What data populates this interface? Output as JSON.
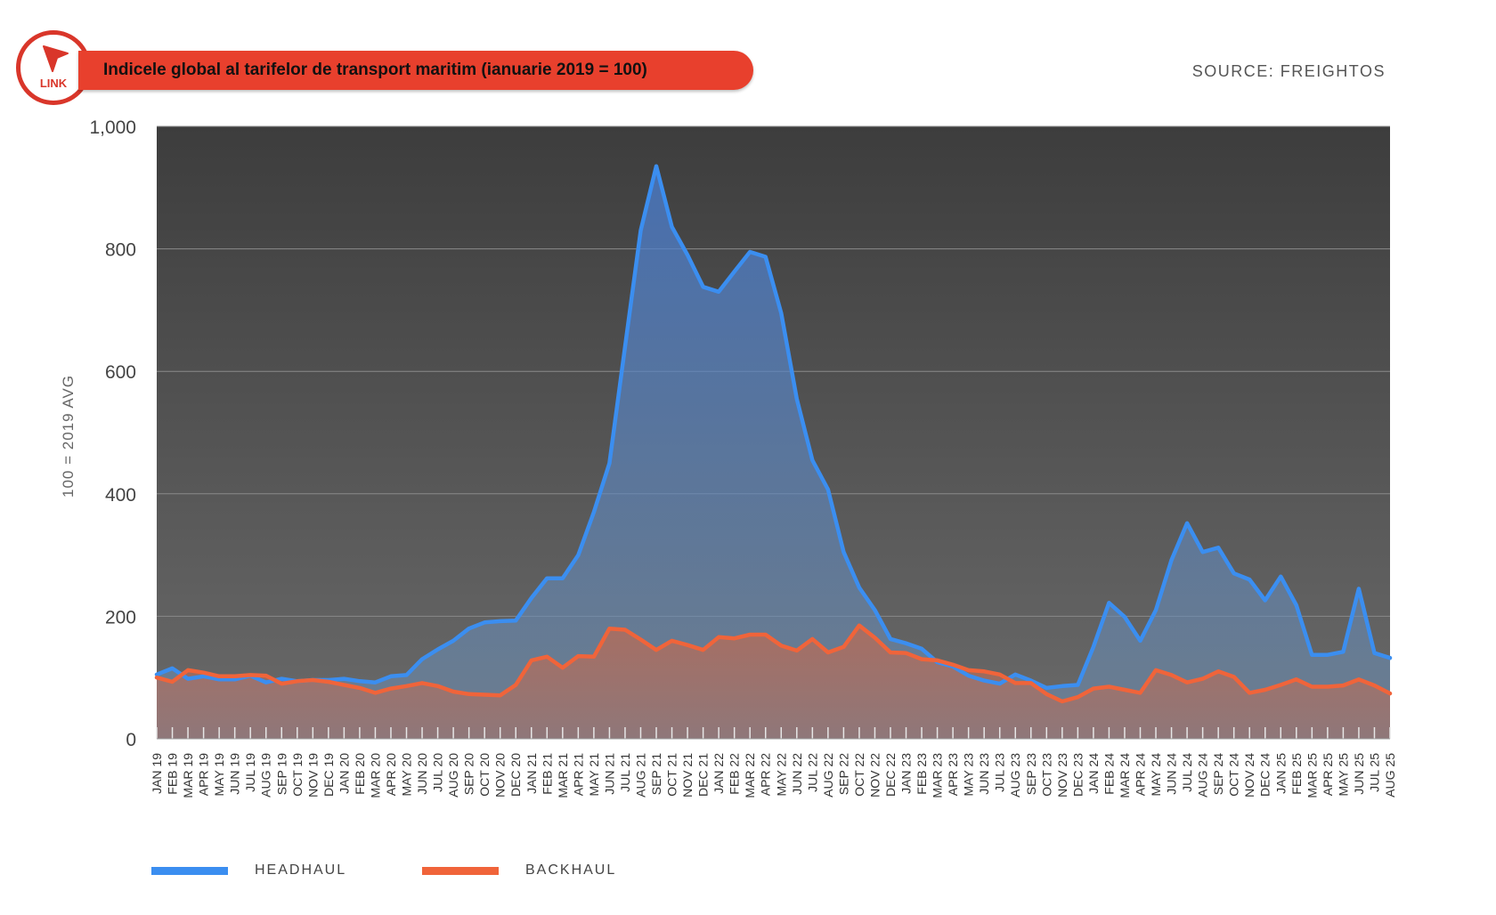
{
  "header": {
    "title": "Indicele global al tarifelor de transport maritim (ianuarie 2019 = 100)",
    "link_label": "LINK",
    "source": "SOURCE: FREIGHTOS"
  },
  "colors": {
    "headhaul": "#3b8ef0",
    "backhaul": "#f0643a",
    "brand": "#e8402d"
  },
  "chart_data": {
    "type": "area",
    "title": "Indicele global al tarifelor de transport maritim (ianuarie 2019 = 100)",
    "ylabel": "100 = 2019 AVG",
    "xlabel": "",
    "ylim": [
      0,
      1000
    ],
    "yticks": [
      0,
      200,
      400,
      600,
      800,
      1000
    ],
    "ytick_labels": [
      "0",
      "200",
      "400",
      "600",
      "800",
      "1,000"
    ],
    "grid": true,
    "legend_position": "bottom-left",
    "categories": [
      "JAN 19",
      "FEB 19",
      "MAR 19",
      "APR 19",
      "MAY 19",
      "JUN 19",
      "JUL 19",
      "AUG 19",
      "SEP 19",
      "OCT 19",
      "NOV 19",
      "DEC 19",
      "JAN 20",
      "FEB 20",
      "MAR 20",
      "APR 20",
      "MAY 20",
      "JUN 20",
      "JUL 20",
      "AUG 20",
      "SEP 20",
      "OCT 20",
      "NOV 20",
      "DEC 20",
      "JAN 21",
      "FEB 21",
      "MAR 21",
      "APR 21",
      "MAY 21",
      "JUN 21",
      "JUL 21",
      "AUG 21",
      "SEP 21",
      "OCT 21",
      "NOV 21",
      "DEC 21",
      "JAN 22",
      "FEB 22",
      "MAR 22",
      "APR 22",
      "MAY 22",
      "JUN 22",
      "JUL 22",
      "AUG 22",
      "SEP 22",
      "OCT 22",
      "NOV 22",
      "DEC 22",
      "JAN 23",
      "FEB 23",
      "MAR 23",
      "APR 23",
      "MAY 23",
      "JUN 23",
      "JUL 23",
      "AUG 23",
      "SEP 23",
      "OCT 23",
      "NOV 23",
      "DEC 23",
      "JAN 24",
      "FEB 24",
      "MAR 24",
      "APR 24",
      "MAY 24",
      "JUN 24",
      "JUL 24",
      "AUG 24",
      "SEP 24",
      "OCT 24",
      "NOV 24",
      "DEC 24",
      "JAN 25",
      "FEB 25",
      "MAR 25",
      "APR 25",
      "MAY 25",
      "JUN 25",
      "JUL 25",
      "AUG 25"
    ],
    "series": [
      {
        "name": "HEADHAUL",
        "color": "#3b8ef0",
        "values": [
          105,
          115,
          98,
          102,
          97,
          97,
          103,
          92,
          98,
          94,
          96,
          96,
          98,
          94,
          92,
          102,
          104,
          130,
          146,
          160,
          180,
          190,
          192,
          193,
          230,
          262,
          262,
          300,
          370,
          450,
          640,
          830,
          935,
          836,
          790,
          738,
          730,
          763,
          795,
          787,
          695,
          555,
          455,
          407,
          305,
          247,
          210,
          163,
          156,
          147,
          125,
          118,
          103,
          95,
          90,
          105,
          95,
          83,
          86,
          88,
          150,
          222,
          199,
          160,
          210,
          292,
          352,
          305,
          312,
          270,
          260,
          226,
          265,
          218,
          137,
          137,
          142,
          245,
          140,
          132
        ]
      },
      {
        "name": "BACKHAUL",
        "color": "#f0643a",
        "values": [
          100,
          93,
          112,
          108,
          102,
          102,
          104,
          103,
          90,
          94,
          96,
          93,
          88,
          83,
          75,
          82,
          86,
          91,
          86,
          77,
          73,
          72,
          71,
          88,
          128,
          134,
          116,
          135,
          134,
          180,
          178,
          162,
          145,
          160,
          153,
          145,
          166,
          164,
          170,
          170,
          152,
          144,
          163,
          141,
          150,
          185,
          165,
          141,
          140,
          130,
          128,
          121,
          112,
          110,
          105,
          91,
          91,
          73,
          61,
          68,
          82,
          85,
          80,
          75,
          112,
          104,
          92,
          98,
          110,
          101,
          75,
          80,
          88,
          97,
          85,
          85,
          87,
          97,
          87,
          74
        ]
      }
    ]
  }
}
